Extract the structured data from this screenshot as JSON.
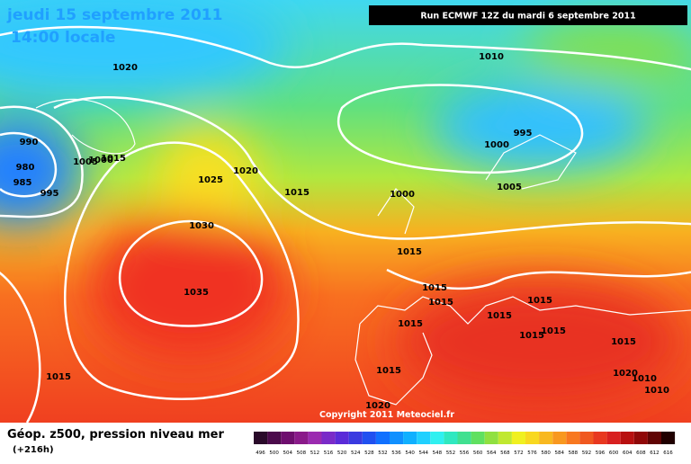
{
  "header": {
    "date": "jeudi 15 septembre 2011",
    "time": "14:00 locale",
    "run": "Run ECMWF 12Z du mardi 6 septembre 2011"
  },
  "isobar_labels": [
    "1020",
    "1010",
    "990",
    "980",
    "985",
    "995",
    "1005",
    "1000",
    "1015",
    "1025",
    "1020",
    "1015",
    "995",
    "1000",
    "1000",
    "1005",
    "1030",
    "1035",
    "1015",
    "1015",
    "1015",
    "1015",
    "1015",
    "1015",
    "1015",
    "1020",
    "1015",
    "1015",
    "1015",
    "1010",
    "1010",
    "1020",
    "1015"
  ],
  "footer": {
    "title": "Géop. z500, pression niveau mer",
    "lead": "(+216h)",
    "copyright": "Copyright 2011 Meteociel.fr"
  },
  "scale": {
    "labels": [
      "496",
      "500",
      "504",
      "508",
      "512",
      "516",
      "520",
      "524",
      "528",
      "532",
      "536",
      "540",
      "544",
      "548",
      "552",
      "556",
      "560",
      "564",
      "568",
      "572",
      "576",
      "580",
      "584",
      "588",
      "592",
      "596",
      "600",
      "604",
      "608",
      "612",
      "616"
    ],
    "colors": [
      "#2a0a2a",
      "#4b0a4b",
      "#6e0e6e",
      "#8a1a8a",
      "#9b2bb0",
      "#7a2bc8",
      "#5a2bd8",
      "#3a3ae0",
      "#2050f0",
      "#1070ff",
      "#1090ff",
      "#10b0ff",
      "#20d0ff",
      "#30f0f0",
      "#30e8c0",
      "#40e090",
      "#60e060",
      "#90e040",
      "#c0e830",
      "#f0f020",
      "#f8d820",
      "#f8b820",
      "#f89820",
      "#f87820",
      "#f05820",
      "#e83820",
      "#d82020",
      "#b81010",
      "#900808",
      "#600404",
      "#200000"
    ]
  }
}
